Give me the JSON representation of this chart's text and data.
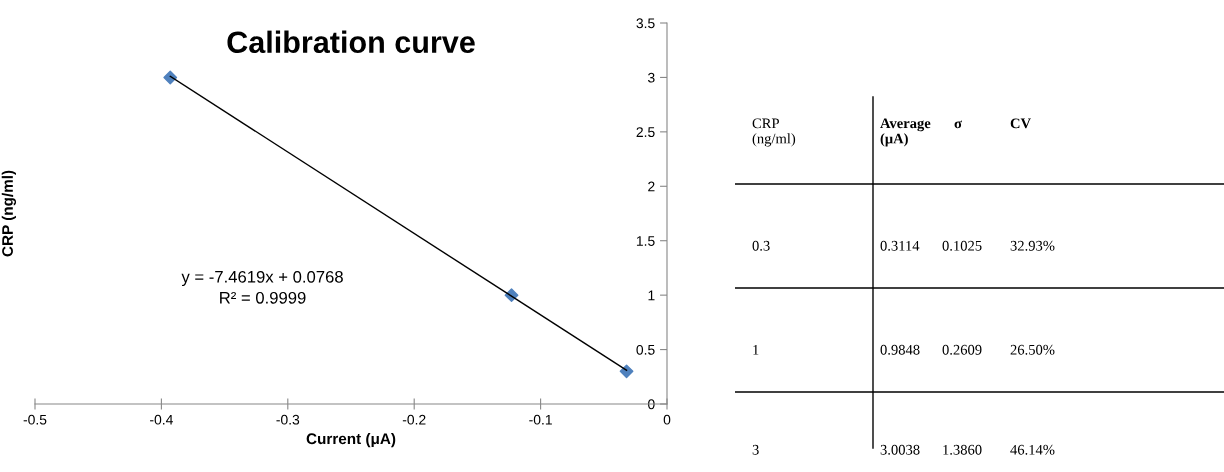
{
  "chart_data": [
    {
      "type": "scatter",
      "title": "Calibration curve",
      "xlabel": "Current (μA)",
      "ylabel": "CRP (ng/ml)",
      "x": [
        -0.393,
        -0.123,
        -0.032
      ],
      "series": [
        {
          "type": "scatter",
          "color": "#4f81bd",
          "marker": "diamond",
          "values": [
            3,
            1,
            0.3
          ]
        },
        {
          "type": "line",
          "color": "#000000",
          "marker": "none",
          "x": [
            -0.393,
            -0.032
          ],
          "values": [
            3.01,
            0.31
          ]
        }
      ],
      "annotations": [
        "y = -7.4619x + 0.0768",
        "R² = 0.9999"
      ],
      "xlim": [
        -0.5,
        0
      ],
      "xticks": [
        -0.5,
        -0.4,
        -0.3,
        -0.2,
        -0.1,
        0
      ],
      "ylim": [
        0,
        3.5
      ],
      "yticks": [
        0,
        0.5,
        1,
        1.5,
        2,
        2.5,
        3,
        3.5
      ],
      "grid": false,
      "legend": false
    },
    {
      "type": "other",
      "annotations": [
        "CRP\n(ng/ml)",
        "Average\n(μA)",
        "σ",
        "CV",
        "0.3",
        "0.3114",
        "0.1025",
        "32.93%",
        "1",
        "0.9848",
        "0.2609",
        "26.50%",
        "3",
        "3.0038",
        "1.3860",
        "46.14%"
      ]
    }
  ]
}
